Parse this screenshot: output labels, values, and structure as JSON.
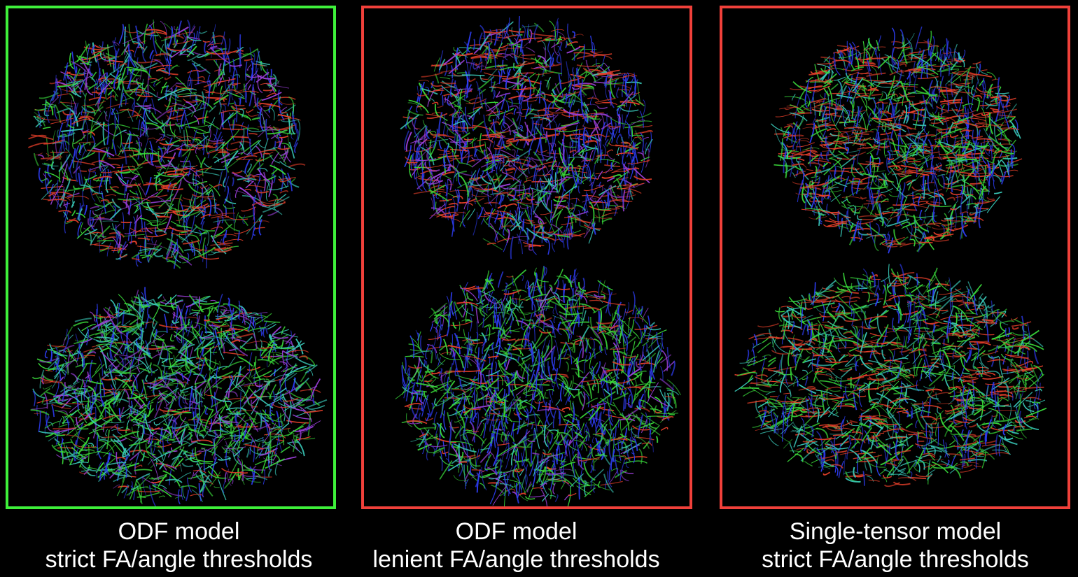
{
  "panels": [
    {
      "model": "ODF model",
      "thresholds": "strict FA/angle thresholds",
      "border_color": "#3ef03a",
      "views": [
        "coronal-brain-tractography",
        "sagittal-brain-tractography"
      ]
    },
    {
      "model": "ODF model",
      "thresholds": "lenient FA/angle thresholds",
      "border_color": "#f0403a",
      "views": [
        "coronal-brain-tractography",
        "sagittal-brain-tractography"
      ]
    },
    {
      "model": "Single-tensor model",
      "thresholds": "strict FA/angle thresholds",
      "border_color": "#f0403a",
      "views": [
        "coronal-brain-tractography",
        "sagittal-brain-tractography"
      ]
    }
  ],
  "fiber_colors": {
    "left_right": "#e8402a",
    "anterior_posterior": "#39d83a",
    "superior_inferior": "#2d3cf0",
    "mixed_purple": "#9a3fd8",
    "mixed_cyan": "#39c8b8"
  }
}
